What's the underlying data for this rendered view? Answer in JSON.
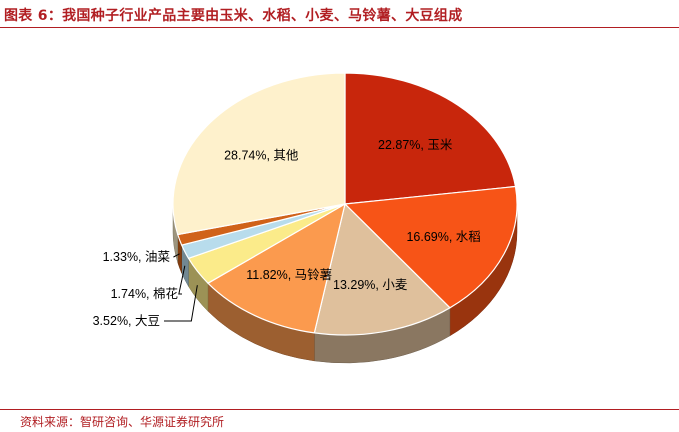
{
  "title": "图表 6：我国种子行业产品主要由玉米、水稻、小麦、马铃薯、大豆组成",
  "source": "资料来源：智研咨询、华源证券研究所",
  "chart_data": {
    "type": "pie",
    "title": "",
    "slices": [
      {
        "name": "玉米",
        "value": 22.87,
        "label": "22.87%, 玉米",
        "color": "#c8260c"
      },
      {
        "name": "水稻",
        "value": 16.69,
        "label": "16.69%, 水稻",
        "color": "#f75417"
      },
      {
        "name": "小麦",
        "value": 13.29,
        "label": "13.29%, 小麦",
        "color": "#dfc09c"
      },
      {
        "name": "马铃薯",
        "value": 11.82,
        "label": "11.82%, 马铃薯",
        "color": "#fb9a4e"
      },
      {
        "name": "大豆",
        "value": 3.52,
        "label": "3.52%, 大豆",
        "color": "#fbeb8a"
      },
      {
        "name": "棉花",
        "value": 1.74,
        "label": "1.74%, 棉花",
        "color": "#b8dcec"
      },
      {
        "name": "油菜",
        "value": 1.33,
        "label": "1.33%, 油菜",
        "color": "#d0621a"
      },
      {
        "name": "其他",
        "value": 28.74,
        "label": "28.74%, 其他",
        "color": "#fef1cc"
      }
    ]
  }
}
